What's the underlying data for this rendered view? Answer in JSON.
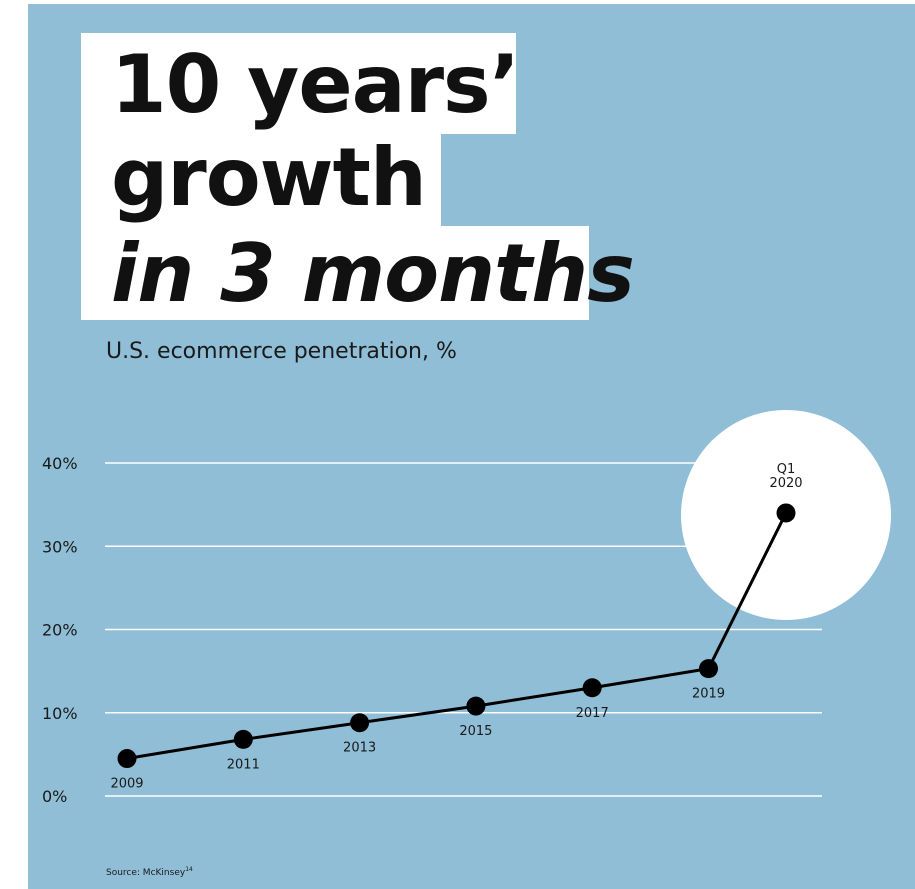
{
  "title": {
    "line1": "10 years’",
    "line2": "growth",
    "line3": "in 3 months"
  },
  "subtitle": "U.S. ecommerce penetration, %",
  "source": "Source: McKinsey",
  "source_superscript": "14",
  "colors": {
    "background": "#8fbed6",
    "title_box": "#ffffff",
    "line": "#000000",
    "gridline": "#ffffff",
    "highlight_circle": "#ffffff"
  },
  "chart_data": {
    "type": "line",
    "title": "",
    "subtitle": "U.S. ecommerce penetration, %",
    "xlabel": "",
    "ylabel": "",
    "ylim": [
      0,
      40
    ],
    "y_ticks": [
      0,
      10,
      20,
      30,
      40
    ],
    "y_tick_labels": [
      "0%",
      "10%",
      "20%",
      "30%",
      "40%"
    ],
    "grid": true,
    "legend": "none",
    "points": [
      {
        "label": "2009",
        "value": 4.5
      },
      {
        "label": "2011",
        "value": 6.8
      },
      {
        "label": "2013",
        "value": 8.8
      },
      {
        "label": "2015",
        "value": 10.8
      },
      {
        "label": "2017",
        "value": 13.0
      },
      {
        "label": "2019",
        "value": 15.3
      },
      {
        "label": "Q1 2020",
        "label_lines": [
          "Q1",
          "2020"
        ],
        "value": 34.0,
        "highlighted": true
      }
    ]
  }
}
